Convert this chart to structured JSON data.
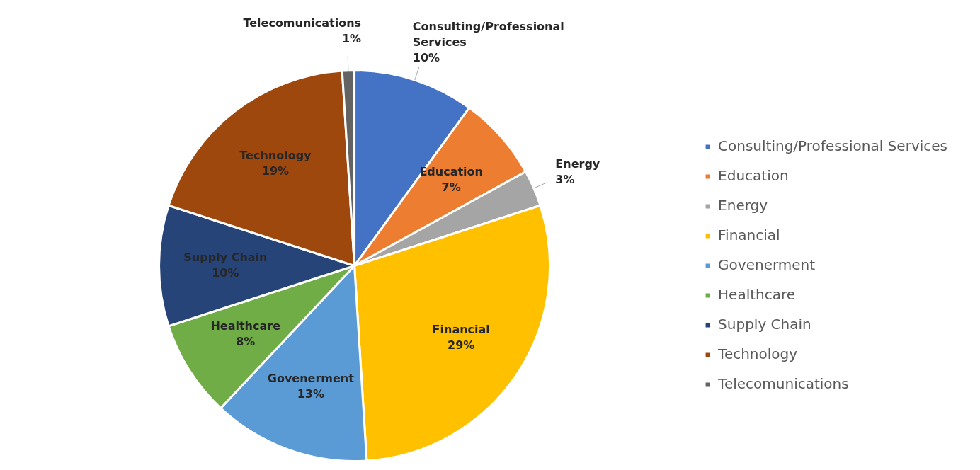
{
  "chart_data": {
    "type": "pie",
    "categories": [
      "Consulting/Professional Services",
      "Education",
      "Energy",
      "Financial",
      "Govenerment",
      "Healthcare",
      "Supply Chain",
      "Technology",
      "Telecomunications"
    ],
    "values": [
      10,
      7,
      3,
      29,
      13,
      8,
      10,
      19,
      1
    ],
    "colors": [
      "#4472c4",
      "#ed7d31",
      "#a5a5a5",
      "#ffc000",
      "#5b9bd5",
      "#70ad47",
      "#264478",
      "#9e480e",
      "#636363"
    ],
    "value_labels": [
      "10%",
      "7%",
      "3%",
      "29%",
      "13%",
      "8%",
      "10%",
      "19%",
      "1%"
    ],
    "legend": "right"
  }
}
